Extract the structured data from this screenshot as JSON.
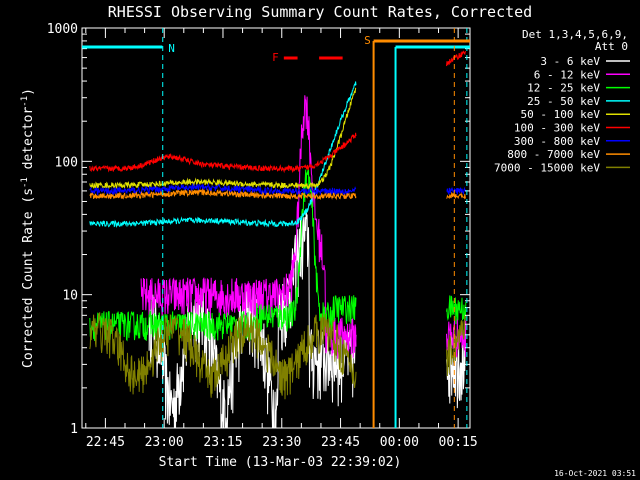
{
  "chart_data": {
    "type": "line",
    "title": "RHESSI Observing Summary Count Rates, Corrected",
    "xlabel": "Start Time (13-Mar-03 22:39:02)",
    "ylabel_parts": [
      "Corrected Count Rate (s",
      "-1",
      " detector",
      "-1",
      ")"
    ],
    "yscale": "log",
    "ylim": [
      1,
      1000
    ],
    "xlim_minutes": [
      0,
      99
    ],
    "x_tick_labels": [
      "22:45",
      "23:00",
      "23:15",
      "23:30",
      "23:45",
      "00:00",
      "00:15"
    ],
    "x_tick_minutes": [
      5.97,
      20.97,
      35.97,
      50.97,
      65.97,
      80.97,
      95.97
    ],
    "y_tick_labels": [
      "1",
      "10",
      "100",
      "1000"
    ],
    "y_tick_values": [
      1,
      10,
      100,
      1000
    ],
    "legend_header": [
      "Det 1,3,4,5,6,9,",
      "Att 0"
    ],
    "legend_placement": "right",
    "series": [
      {
        "name": "3 - 6 keV",
        "color": "#ffffff"
      },
      {
        "name": "6 - 12 keV",
        "color": "#ff00ff"
      },
      {
        "name": "12 - 25 keV",
        "color": "#00ff00"
      },
      {
        "name": "25 - 50 keV",
        "color": "#00ffff"
      },
      {
        "name": "50 - 100 keV",
        "color": "#e0e000"
      },
      {
        "name": "100 - 300 keV",
        "color": "#ff0000"
      },
      {
        "name": "300 - 800 keV",
        "color": "#0000ff"
      },
      {
        "name": "800 - 7000 keV",
        "color": "#ff8c00"
      },
      {
        "name": "7000 - 15000 keV",
        "color": "#808000"
      }
    ],
    "annotations": [
      {
        "label": "N",
        "color": "#00ffff"
      },
      {
        "label": "F",
        "color": "#ff0000"
      },
      {
        "label": "S",
        "color": "#ff8c00"
      }
    ],
    "footer": "16-Oct-2021 03:51"
  }
}
